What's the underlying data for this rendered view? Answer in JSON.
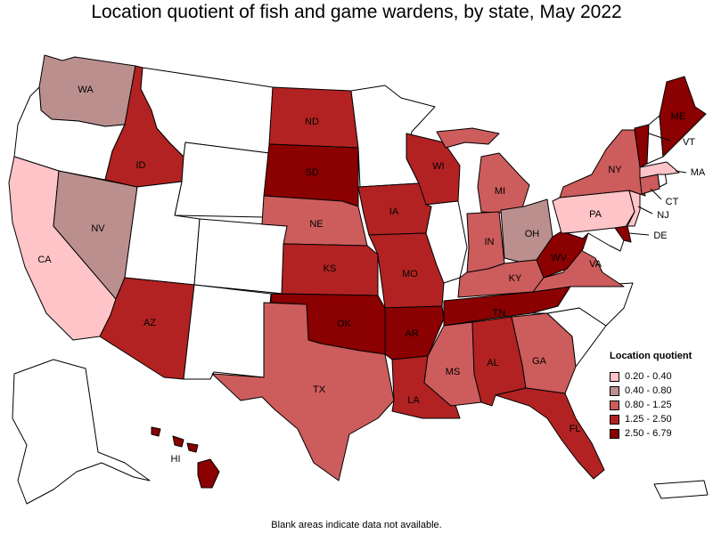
{
  "title": "Location quotient of fish and game wardens, by state, May 2022",
  "footnote": "Blank areas indicate data not available.",
  "legend": {
    "title": "Location quotient",
    "items": [
      {
        "label": "0.20 - 0.40",
        "color": "#ffc4c8"
      },
      {
        "label": "0.40 - 0.80",
        "color": "#bc8f8f"
      },
      {
        "label": "0.80 - 1.25",
        "color": "#cd5c5c"
      },
      {
        "label": "1.25 - 2.50",
        "color": "#b22222"
      },
      {
        "label": "2.50 - 6.79",
        "color": "#8b0000"
      }
    ]
  },
  "no_data_color": "#ffffff",
  "states": {
    "WA": {
      "label": "WA",
      "class": 1
    },
    "OR": {
      "label": "",
      "class": -1
    },
    "CA": {
      "label": "CA",
      "class": 0
    },
    "NV": {
      "label": "NV",
      "class": 1
    },
    "ID": {
      "label": "ID",
      "class": 3
    },
    "MT": {
      "label": "",
      "class": -1
    },
    "WY": {
      "label": "",
      "class": -1
    },
    "UT": {
      "label": "",
      "class": -1
    },
    "AZ": {
      "label": "AZ",
      "class": 3
    },
    "CO": {
      "label": "",
      "class": -1
    },
    "NM": {
      "label": "",
      "class": -1
    },
    "ND": {
      "label": "ND",
      "class": 3
    },
    "SD": {
      "label": "SD",
      "class": 4
    },
    "NE": {
      "label": "NE",
      "class": 2
    },
    "KS": {
      "label": "KS",
      "class": 3
    },
    "OK": {
      "label": "OK",
      "class": 4
    },
    "TX": {
      "label": "TX",
      "class": 2
    },
    "MN": {
      "label": "",
      "class": -1
    },
    "IA": {
      "label": "IA",
      "class": 3
    },
    "MO": {
      "label": "MO",
      "class": 3
    },
    "AR": {
      "label": "AR",
      "class": 4
    },
    "LA": {
      "label": "LA",
      "class": 3
    },
    "WI": {
      "label": "WI",
      "class": 3
    },
    "IL": {
      "label": "",
      "class": -1
    },
    "MI": {
      "label": "MI",
      "class": 2
    },
    "IN": {
      "label": "IN",
      "class": 2
    },
    "OH": {
      "label": "OH",
      "class": 1
    },
    "KY": {
      "label": "KY",
      "class": 2
    },
    "TN": {
      "label": "TN",
      "class": 4
    },
    "MS": {
      "label": "MS",
      "class": 2
    },
    "AL": {
      "label": "AL",
      "class": 3
    },
    "GA": {
      "label": "GA",
      "class": 2
    },
    "FL": {
      "label": "FL",
      "class": 3
    },
    "SC": {
      "label": "",
      "class": -1
    },
    "NC": {
      "label": "",
      "class": -1
    },
    "VA": {
      "label": "VA",
      "class": 2
    },
    "WV": {
      "label": "WV",
      "class": 4
    },
    "MD": {
      "label": "",
      "class": -1
    },
    "DE": {
      "label": "DE",
      "class": 4
    },
    "PA": {
      "label": "PA",
      "class": 0
    },
    "NJ": {
      "label": "NJ",
      "class": 0
    },
    "NY": {
      "label": "NY",
      "class": 2
    },
    "CT": {
      "label": "CT",
      "class": 2
    },
    "RI": {
      "label": "",
      "class": -1
    },
    "MA": {
      "label": "MA",
      "class": 0
    },
    "VT": {
      "label": "VT",
      "class": 4
    },
    "NH": {
      "label": "",
      "class": -1
    },
    "ME": {
      "label": "ME",
      "class": 4
    },
    "AK": {
      "label": "",
      "class": -1
    },
    "HI": {
      "label": "HI",
      "class": 4
    },
    "PR": {
      "label": "",
      "class": -1
    }
  }
}
